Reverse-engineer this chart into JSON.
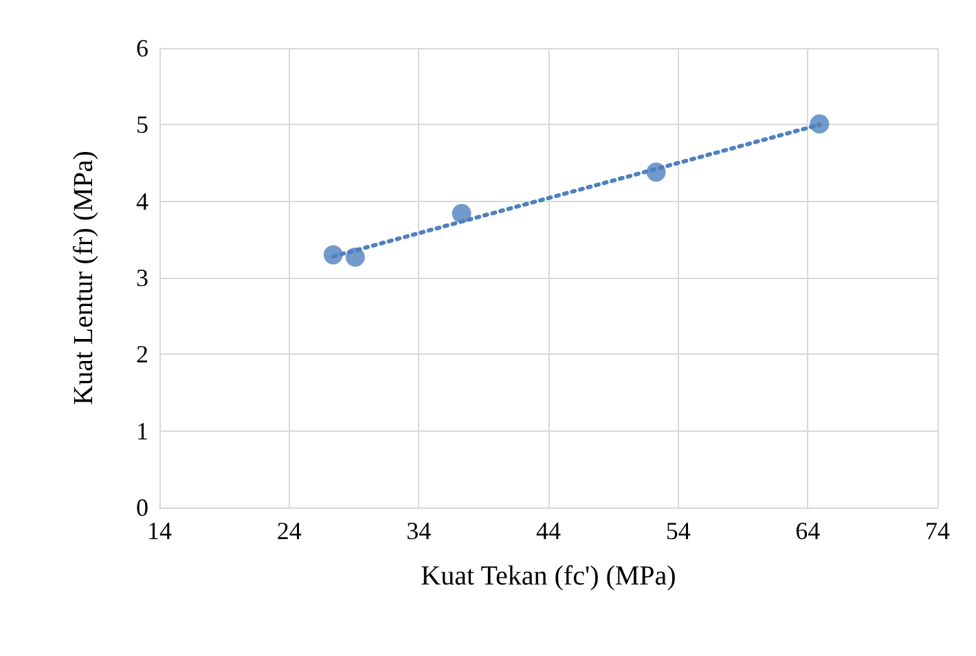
{
  "chart_data": {
    "type": "scatter",
    "xlabel": "Kuat Tekan (fc') (MPa)",
    "ylabel": "Kuat Lentur (fr) (MPa)",
    "xlim": [
      14,
      74
    ],
    "xticks": [
      14,
      24,
      34,
      44,
      54,
      64,
      74
    ],
    "ylim": [
      0,
      6
    ],
    "yticks": [
      0,
      1,
      2,
      3,
      4,
      5,
      6
    ],
    "grid": true,
    "series": [
      {
        "color": "#4f81bd",
        "marker": "circle",
        "x": [
          27.4,
          29.1,
          37.3,
          52.3,
          64.9
        ],
        "values": [
          3.3,
          3.27,
          3.84,
          4.38,
          5.01
        ]
      },
      {
        "type": "line",
        "color": "#4f81bd",
        "line_style": "dotted",
        "marker": "none",
        "x": [
          27.4,
          64.9
        ],
        "values": [
          3.28,
          5.0
        ]
      }
    ]
  }
}
